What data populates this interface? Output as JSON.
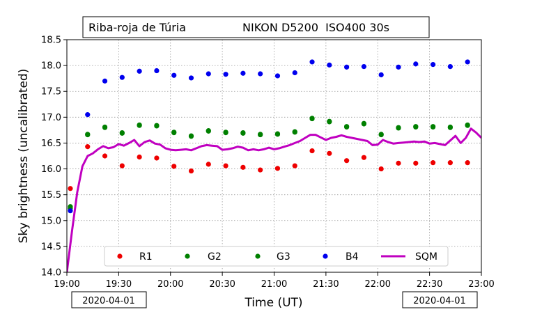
{
  "chart_data": {
    "type": "scatter",
    "title_location": "Riba-roja de Túria",
    "title_camera": "NIKON D5200  ISO400 30s",
    "xlabel": "Time (UT)",
    "ylabel": "Sky brightness (uncalibrated)",
    "xlim": [
      "19:00",
      "23:00"
    ],
    "ylim": [
      14.0,
      18.5
    ],
    "x_ticks": [
      "19:00",
      "19:30",
      "20:00",
      "20:30",
      "21:00",
      "21:30",
      "22:00",
      "22:30",
      "23:00"
    ],
    "y_ticks": [
      "14.0",
      "14.5",
      "15.0",
      "15.5",
      "16.0",
      "16.5",
      "17.0",
      "17.5",
      "18.0",
      "18.5"
    ],
    "date_left": "2020-04-01",
    "date_right": "2020-04-01",
    "grid": true,
    "legend_placement": "bottom-center",
    "series": [
      {
        "name": "R1",
        "color": "#ee0000",
        "kind": "points",
        "x": [
          "19:02",
          "19:12",
          "19:22",
          "19:32",
          "19:42",
          "19:52",
          "20:02",
          "20:12",
          "20:22",
          "20:32",
          "20:42",
          "20:52",
          "21:02",
          "21:12",
          "21:22",
          "21:32",
          "21:42",
          "21:52",
          "22:02",
          "22:12",
          "22:22",
          "22:32",
          "22:42",
          "22:52"
        ],
        "y": [
          15.62,
          16.43,
          16.25,
          16.06,
          16.23,
          16.21,
          16.05,
          15.96,
          16.09,
          16.06,
          16.03,
          15.98,
          16.01,
          16.06,
          16.35,
          16.3,
          16.16,
          16.22,
          16.0,
          16.11,
          16.11,
          16.12,
          16.12,
          16.12
        ]
      },
      {
        "name": "G2",
        "color": "#008000",
        "kind": "points",
        "x": [
          "19:02",
          "19:12",
          "19:22",
          "19:32",
          "19:42",
          "19:52",
          "20:02",
          "20:12",
          "20:22",
          "20:32",
          "20:42",
          "20:52",
          "21:02",
          "21:12",
          "21:22",
          "21:32",
          "21:42",
          "21:52",
          "22:02",
          "22:12",
          "22:22",
          "22:32",
          "22:42",
          "22:52"
        ],
        "y": [
          15.27,
          16.67,
          16.81,
          16.7,
          16.85,
          16.84,
          16.71,
          16.64,
          16.74,
          16.71,
          16.7,
          16.67,
          16.68,
          16.72,
          16.98,
          16.92,
          16.82,
          16.88,
          16.67,
          16.8,
          16.82,
          16.82,
          16.81,
          16.85
        ]
      },
      {
        "name": "G3",
        "color": "#008000",
        "kind": "points",
        "x": [
          "19:02",
          "19:12",
          "19:22",
          "19:32",
          "19:42",
          "19:52",
          "20:02",
          "20:12",
          "20:22",
          "20:32",
          "20:42",
          "20:52",
          "21:02",
          "21:12",
          "21:22",
          "21:32",
          "21:42",
          "21:52",
          "22:02",
          "22:12",
          "22:22",
          "22:32",
          "22:42",
          "22:52"
        ],
        "y": [
          15.24,
          16.66,
          16.8,
          16.69,
          16.84,
          16.83,
          16.7,
          16.63,
          16.73,
          16.7,
          16.69,
          16.66,
          16.67,
          16.71,
          16.97,
          16.91,
          16.81,
          16.87,
          16.66,
          16.79,
          16.81,
          16.81,
          16.8,
          16.84
        ]
      },
      {
        "name": "B4",
        "color": "#0000ee",
        "kind": "points",
        "x": [
          "19:02",
          "19:12",
          "19:22",
          "19:32",
          "19:42",
          "19:52",
          "20:02",
          "20:12",
          "20:22",
          "20:32",
          "20:42",
          "20:52",
          "21:02",
          "21:12",
          "21:22",
          "21:32",
          "21:42",
          "21:52",
          "22:02",
          "22:12",
          "22:22",
          "22:32",
          "22:42",
          "22:52"
        ],
        "y": [
          15.19,
          17.05,
          17.7,
          17.77,
          17.89,
          17.9,
          17.81,
          17.76,
          17.84,
          17.83,
          17.85,
          17.84,
          17.8,
          17.86,
          18.07,
          18.01,
          17.97,
          17.98,
          17.82,
          17.97,
          18.03,
          18.02,
          17.98,
          18.07
        ]
      },
      {
        "name": "SQM",
        "color": "#c000c0",
        "kind": "line",
        "x": [
          "19:00",
          "19:03",
          "19:06",
          "19:09",
          "19:12",
          "19:15",
          "19:18",
          "19:21",
          "19:24",
          "19:27",
          "19:30",
          "19:33",
          "19:36",
          "19:39",
          "19:42",
          "19:45",
          "19:48",
          "19:51",
          "19:54",
          "19:57",
          "20:00",
          "20:03",
          "20:06",
          "20:09",
          "20:12",
          "20:15",
          "20:18",
          "20:21",
          "20:24",
          "20:27",
          "20:30",
          "20:33",
          "20:36",
          "20:39",
          "20:42",
          "20:45",
          "20:48",
          "20:51",
          "20:54",
          "20:57",
          "21:00",
          "21:03",
          "21:06",
          "21:09",
          "21:12",
          "21:15",
          "21:18",
          "21:21",
          "21:24",
          "21:27",
          "21:30",
          "21:33",
          "21:36",
          "21:39",
          "21:42",
          "21:45",
          "21:48",
          "21:51",
          "21:54",
          "21:57",
          "22:00",
          "22:03",
          "22:06",
          "22:09",
          "22:12",
          "22:15",
          "22:18",
          "22:21",
          "22:24",
          "22:27",
          "22:30",
          "22:33",
          "22:36",
          "22:39",
          "22:42",
          "22:45",
          "22:48",
          "22:51",
          "22:54",
          "22:57",
          "23:00"
        ],
        "y": [
          14.0,
          14.8,
          15.55,
          16.05,
          16.25,
          16.3,
          16.38,
          16.44,
          16.4,
          16.42,
          16.48,
          16.45,
          16.5,
          16.56,
          16.44,
          16.52,
          16.55,
          16.49,
          16.47,
          16.4,
          16.37,
          16.36,
          16.37,
          16.38,
          16.36,
          16.4,
          16.44,
          16.46,
          16.45,
          16.44,
          16.37,
          16.38,
          16.4,
          16.43,
          16.41,
          16.36,
          16.38,
          16.36,
          16.38,
          16.41,
          16.38,
          16.4,
          16.43,
          16.46,
          16.5,
          16.54,
          16.6,
          16.66,
          16.66,
          16.61,
          16.56,
          16.6,
          16.62,
          16.65,
          16.62,
          16.6,
          16.58,
          16.56,
          16.54,
          16.46,
          16.47,
          16.56,
          16.52,
          16.49,
          16.5,
          16.51,
          16.52,
          16.53,
          16.52,
          16.53,
          16.49,
          16.5,
          16.48,
          16.46,
          16.55,
          16.64,
          16.5,
          16.6,
          16.78,
          16.7,
          16.6
        ]
      }
    ]
  }
}
